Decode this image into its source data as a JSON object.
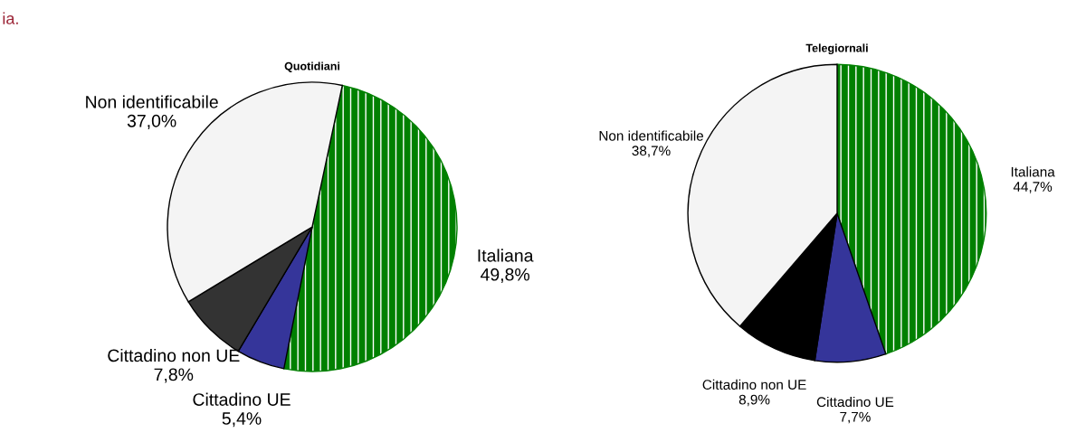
{
  "chart_data": [
    {
      "type": "pie",
      "title": "Quotidiani",
      "annotations": [
        "ia."
      ],
      "categories": [
        "Italiana",
        "Cittadino UE",
        "Cittadino non UE",
        "Non identificabile"
      ],
      "values": [
        49.8,
        5.4,
        7.8,
        37.0
      ],
      "value_labels": [
        "49,8%",
        "5,4%",
        "7,8%",
        "37,0%"
      ],
      "colors": [
        "#008000",
        "#35359a",
        "#333333",
        "#f4f4f4"
      ]
    },
    {
      "type": "pie",
      "title": "Telegiornali",
      "categories": [
        "Italiana",
        "Cittadino UE",
        "Cittadino non UE",
        "Non identificabile"
      ],
      "values": [
        44.7,
        7.7,
        8.9,
        38.7
      ],
      "value_labels": [
        "44,7%",
        "7,7%",
        "8,9%",
        "38,7%"
      ],
      "colors": [
        "#008000",
        "#35359a",
        "#000000",
        "#f4f4f4"
      ]
    }
  ]
}
